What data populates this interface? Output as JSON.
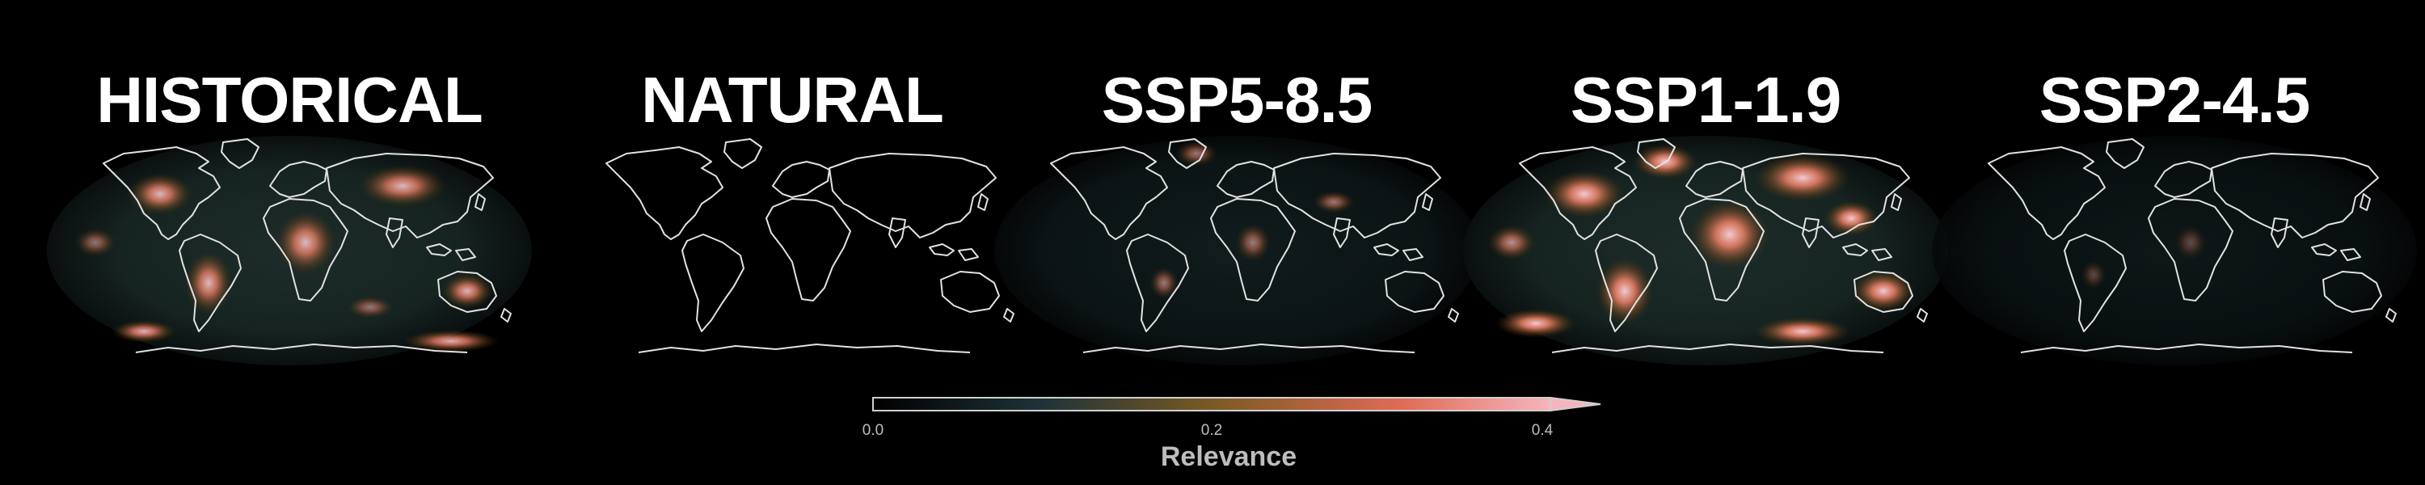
{
  "panels": [
    {
      "title": "HISTORICAL",
      "intensity": "high"
    },
    {
      "title": "NATURAL",
      "intensity": "none"
    },
    {
      "title": "SSP5-8.5",
      "intensity": "low"
    },
    {
      "title": "SSP1-1.9",
      "intensity": "very-high"
    },
    {
      "title": "SSP2-4.5",
      "intensity": "very-low"
    }
  ],
  "colorbar": {
    "label": "Relevance",
    "ticks": [
      "0.0",
      "0.2",
      "0.4"
    ],
    "range": [
      0.0,
      0.4
    ],
    "extend": "max",
    "colors": [
      "#000000",
      "#1f3338",
      "#7a5a24",
      "#e06b55",
      "#f6b5bd"
    ]
  },
  "colors": {
    "background": "#000000",
    "coastline": "#e0e0e0"
  }
}
